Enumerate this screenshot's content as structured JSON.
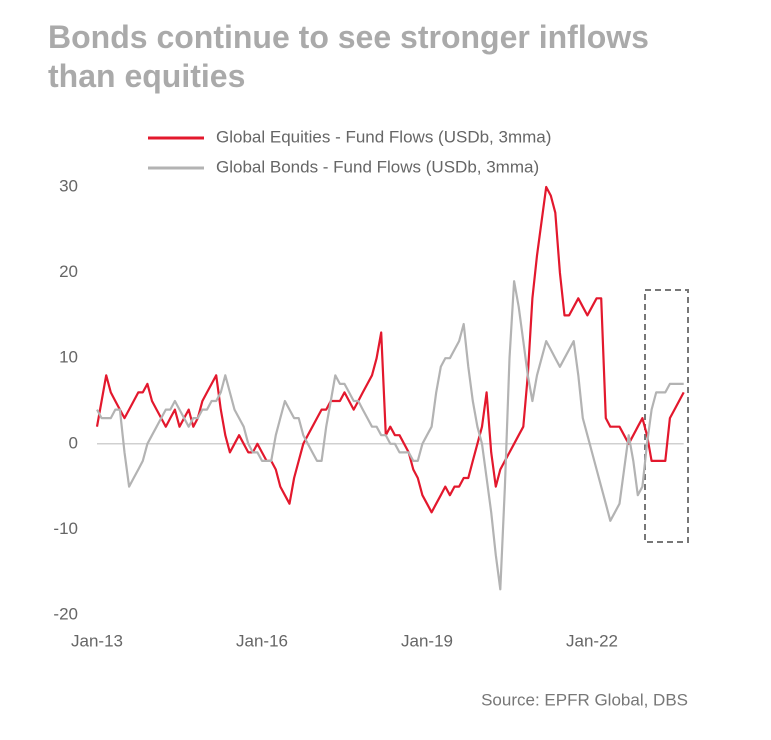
{
  "chart_data": {
    "type": "line",
    "title": "Bonds continue to see stronger inflows than equities",
    "source": "Source: EPFR Global, DBS",
    "x": [
      "Jan-13",
      "Feb-13",
      "Mar-13",
      "Apr-13",
      "May-13",
      "Jun-13",
      "Jul-13",
      "Aug-13",
      "Sep-13",
      "Oct-13",
      "Nov-13",
      "Dec-13",
      "Jan-14",
      "Feb-14",
      "Mar-14",
      "Apr-14",
      "May-14",
      "Jun-14",
      "Jul-14",
      "Aug-14",
      "Sep-14",
      "Oct-14",
      "Nov-14",
      "Dec-14",
      "Jan-15",
      "Feb-15",
      "Mar-15",
      "Apr-15",
      "May-15",
      "Jun-15",
      "Jul-15",
      "Aug-15",
      "Sep-15",
      "Oct-15",
      "Nov-15",
      "Dec-15",
      "Jan-16",
      "Feb-16",
      "Mar-16",
      "Apr-16",
      "May-16",
      "Jun-16",
      "Jul-16",
      "Aug-16",
      "Sep-16",
      "Oct-16",
      "Nov-16",
      "Dec-16",
      "Jan-17",
      "Feb-17",
      "Mar-17",
      "Apr-17",
      "May-17",
      "Jun-17",
      "Jul-17",
      "Aug-17",
      "Sep-17",
      "Oct-17",
      "Nov-17",
      "Dec-17",
      "Jan-18",
      "Feb-18",
      "Mar-18",
      "Apr-18",
      "May-18",
      "Jun-18",
      "Jul-18",
      "Aug-18",
      "Sep-18",
      "Oct-18",
      "Nov-18",
      "Dec-18",
      "Jan-19",
      "Feb-19",
      "Mar-19",
      "Apr-19",
      "May-19",
      "Jun-19",
      "Jul-19",
      "Aug-19",
      "Sep-19",
      "Oct-19",
      "Nov-19",
      "Dec-19",
      "Jan-20",
      "Feb-20",
      "Mar-20",
      "Apr-20",
      "May-20",
      "Jun-20",
      "Jul-20",
      "Aug-20",
      "Sep-20",
      "Oct-20",
      "Nov-20",
      "Dec-20",
      "Jan-21",
      "Feb-21",
      "Mar-21",
      "Apr-21",
      "May-21",
      "Jun-21",
      "Jul-21",
      "Aug-21",
      "Sep-21",
      "Oct-21",
      "Nov-21",
      "Dec-21",
      "Jan-22",
      "Feb-22",
      "Mar-22",
      "Apr-22",
      "May-22",
      "Jun-22",
      "Jul-22",
      "Aug-22",
      "Sep-22",
      "Oct-22",
      "Nov-22",
      "Dec-22",
      "Jan-23",
      "Feb-23",
      "Mar-23",
      "Apr-23",
      "May-23",
      "Jun-23",
      "Jul-23",
      "Aug-23",
      "Sep-23"
    ],
    "xticks": [
      "Jan-13",
      "Jan-16",
      "Jan-19",
      "Jan-22"
    ],
    "ylim": [
      -20,
      30
    ],
    "yticks": [
      -20,
      -10,
      0,
      10,
      20,
      30
    ],
    "grid": false,
    "legend": "top",
    "series": [
      {
        "name": "Global Equities - Fund Flows (USDb, 3mma)",
        "color": "#e3182d",
        "values": [
          2,
          5,
          8,
          6,
          5,
          4,
          3,
          4,
          5,
          6,
          6,
          7,
          5,
          4,
          3,
          2,
          3,
          4,
          2,
          3,
          4,
          2,
          3,
          5,
          6,
          7,
          8,
          4,
          1,
          -1,
          0,
          1,
          0,
          -1,
          -1,
          0,
          -1,
          -2,
          -2,
          -3,
          -5,
          -6,
          -7,
          -4,
          -2,
          0,
          1,
          2,
          3,
          4,
          4,
          5,
          5,
          5,
          6,
          5,
          4,
          5,
          6,
          7,
          8,
          10,
          13,
          1,
          2,
          1,
          1,
          0,
          -1,
          -3,
          -4,
          -6,
          -7,
          -8,
          -7,
          -6,
          -5,
          -6,
          -5,
          -5,
          -4,
          -4,
          -2,
          0,
          2,
          6,
          -1,
          -5,
          -3,
          -2,
          -1,
          0,
          1,
          2,
          8,
          17,
          22,
          26,
          30,
          29,
          27,
          20,
          15,
          15,
          16,
          17,
          16,
          15,
          16,
          17,
          17,
          3,
          2,
          2,
          2,
          1,
          0,
          1,
          2,
          3,
          1,
          -2,
          -2,
          -2,
          -2,
          3,
          4,
          5,
          6
        ]
      },
      {
        "name": "Global Bonds - Fund Flows (USDb, 3mma)",
        "color": "#b3b3b3",
        "values": [
          4,
          3,
          3,
          3,
          4,
          4,
          -1,
          -5,
          -4,
          -3,
          -2,
          0,
          1,
          2,
          3,
          4,
          4,
          5,
          4,
          3,
          2,
          3,
          3,
          4,
          4,
          5,
          5,
          6,
          8,
          6,
          4,
          3,
          2,
          0,
          -1,
          -1,
          -2,
          -2,
          -2,
          1,
          3,
          5,
          4,
          3,
          3,
          1,
          0,
          -1,
          -2,
          -2,
          2,
          5,
          8,
          7,
          7,
          6,
          5,
          5,
          4,
          3,
          2,
          2,
          1,
          1,
          0,
          0,
          -1,
          -1,
          -1,
          -2,
          -2,
          0,
          1,
          2,
          6,
          9,
          10,
          10,
          11,
          12,
          14,
          9,
          5,
          2,
          0,
          -4,
          -8,
          -13,
          -17,
          -5,
          10,
          19,
          16,
          12,
          8,
          5,
          8,
          10,
          12,
          11,
          10,
          9,
          10,
          11,
          12,
          8,
          3,
          1,
          -1,
          -3,
          -5,
          -7,
          -9,
          -8,
          -7,
          -3,
          1,
          -2,
          -6,
          -5,
          0,
          4,
          6,
          6,
          6,
          7,
          7,
          7,
          7
        ]
      }
    ]
  }
}
